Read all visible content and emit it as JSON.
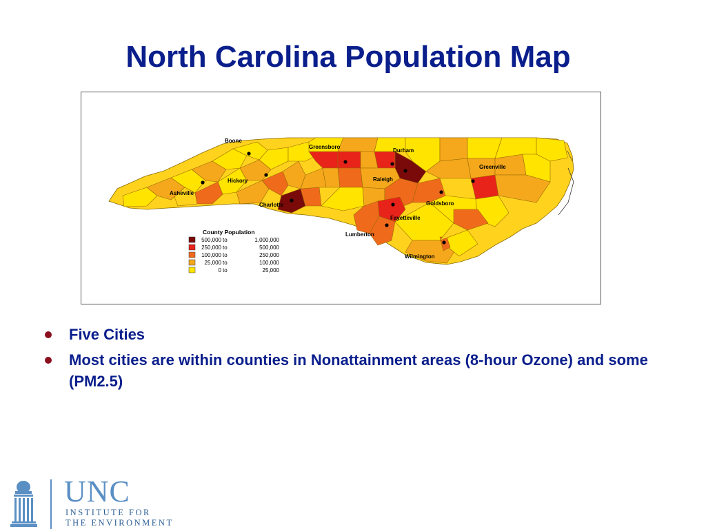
{
  "slide": {
    "title": "North Carolina Population Map"
  },
  "map": {
    "cities": [
      {
        "name": "Boone"
      },
      {
        "name": "Greensboro"
      },
      {
        "name": "Durham"
      },
      {
        "name": "Greenville"
      },
      {
        "name": "Hickory"
      },
      {
        "name": "Raleigh"
      },
      {
        "name": "Asheville"
      },
      {
        "name": "Charlotte"
      },
      {
        "name": "Goldsboro"
      },
      {
        "name": "Fayetteville"
      },
      {
        "name": "Lumberton"
      },
      {
        "name": "Wilmington"
      }
    ],
    "legend": {
      "title": "County Population",
      "classes": [
        {
          "color": "#7a0a0a",
          "from": "500,000",
          "to_word": "to",
          "to": "1,000,000"
        },
        {
          "color": "#e8231a",
          "from": "250,000",
          "to_word": "to",
          "to": "500,000"
        },
        {
          "color": "#f06a1c",
          "from": "100,000",
          "to_word": "to",
          "to": "250,000"
        },
        {
          "color": "#f5a81c",
          "from": "25,000",
          "to_word": "to",
          "to": "100,000"
        },
        {
          "color": "#ffe400",
          "from": "0",
          "to_word": "to",
          "to": "25,000"
        }
      ]
    }
  },
  "bullets": [
    {
      "text": "Five Cities"
    },
    {
      "text": "Most cities are within counties in Nonattainment areas (8-hour Ozone) and some (PM2.5)"
    }
  ],
  "logo": {
    "word": "UNC",
    "line1": "INSTITUTE FOR",
    "line2": "THE ENVIRONMENT"
  },
  "colors": {
    "title": "#0a1e8c",
    "bullet_text": "#0a1e8c",
    "bullet_dot": "#8b0f1e",
    "logo": "#5a8fc4"
  }
}
